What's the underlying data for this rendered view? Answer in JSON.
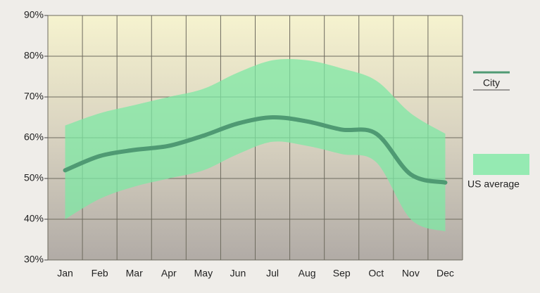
{
  "chart_data": {
    "type": "line",
    "categories": [
      "Jan",
      "Feb",
      "Mar",
      "Apr",
      "May",
      "Jun",
      "Jul",
      "Aug",
      "Sep",
      "Oct",
      "Nov",
      "Dec"
    ],
    "series": [
      {
        "name": "City",
        "color": "#4f9a73",
        "values": [
          52,
          55.5,
          57,
          58,
          60.5,
          63.5,
          65,
          64,
          62,
          61,
          51,
          49
        ]
      },
      {
        "name": "US average",
        "color": "#7ee8a4",
        "low": [
          40,
          45,
          48,
          50,
          52,
          56,
          59,
          58,
          56,
          54,
          40,
          37
        ],
        "high": [
          63,
          66,
          68,
          70,
          72,
          76,
          79,
          79,
          77,
          74,
          66,
          61
        ]
      }
    ],
    "ylim": [
      30,
      90
    ],
    "yticks": [
      {
        "value": 30,
        "label": "30%"
      },
      {
        "value": 40,
        "label": "40%"
      },
      {
        "value": 50,
        "label": "50%"
      },
      {
        "value": 60,
        "label": "60%"
      },
      {
        "value": 70,
        "label": "70%"
      },
      {
        "value": 80,
        "label": "80%"
      },
      {
        "value": 90,
        "label": "90%"
      }
    ],
    "grid": true
  }
}
